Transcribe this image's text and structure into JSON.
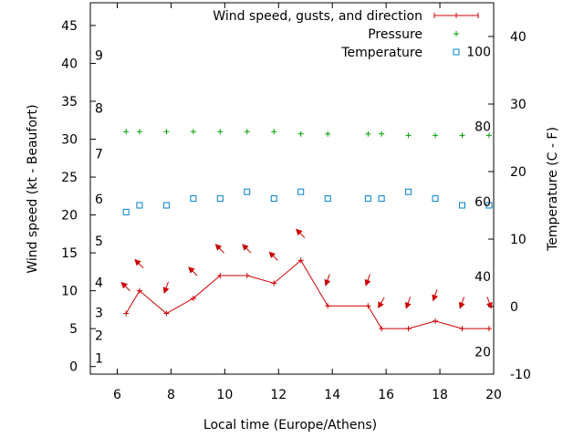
{
  "chart_data": {
    "type": "line",
    "xlabel": "Local time (Europe/Athens)",
    "ylabel": "Wind speed (kt - Beaufort)",
    "y2label": "Temperature (C - F)",
    "xlim": [
      5,
      20
    ],
    "ylim": [
      -1,
      48
    ],
    "y2lim": [
      -10,
      45
    ],
    "x_ticks": [
      6,
      8,
      10,
      12,
      14,
      16,
      18,
      20
    ],
    "y_ticks": [
      0,
      5,
      10,
      15,
      20,
      25,
      30,
      35,
      40,
      45
    ],
    "y2_ticks": [
      -10,
      0,
      10,
      20,
      30,
      40
    ],
    "beaufort_labels": [
      {
        "label": "1",
        "y": 1.1
      },
      {
        "label": "2",
        "y": 4.1
      },
      {
        "label": "3",
        "y": 7.1
      },
      {
        "label": "4",
        "y": 11.1
      },
      {
        "label": "5",
        "y": 16.6
      },
      {
        "label": "6",
        "y": 22.1
      },
      {
        "label": "7",
        "y": 28.1
      },
      {
        "label": "8",
        "y": 34.1
      },
      {
        "label": "9",
        "y": 41.1
      }
    ],
    "fahrenheit_labels": [
      {
        "label": "20",
        "f": 20
      },
      {
        "label": "40",
        "f": 40
      },
      {
        "label": "60",
        "f": 60
      },
      {
        "label": "80",
        "f": 80
      },
      {
        "label": "100",
        "f": 100
      }
    ],
    "legend_position": "top-right",
    "series": [
      {
        "name": "Wind speed, gusts, and direction",
        "color": "#cc0000",
        "marker": "plus-line",
        "x": [
          6.33,
          6.83,
          7.83,
          8.83,
          9.83,
          10.83,
          11.83,
          12.83,
          13.83,
          15.33,
          15.83,
          16.83,
          17.83,
          18.83,
          19.83
        ],
        "y": [
          7,
          10,
          7,
          9,
          12,
          12,
          11,
          14,
          8,
          8,
          5,
          5,
          6,
          5,
          5
        ]
      },
      {
        "name": "Pressure",
        "color": "#00a000",
        "marker": "plus",
        "x": [
          6.33,
          6.83,
          7.83,
          8.83,
          9.83,
          10.83,
          11.83,
          12.83,
          13.83,
          15.33,
          15.83,
          16.83,
          17.83,
          18.83,
          19.83
        ],
        "y": [
          31,
          31,
          31,
          31,
          31,
          31,
          31,
          30.7,
          30.7,
          30.7,
          30.7,
          30.5,
          30.5,
          30.5,
          30.5
        ]
      },
      {
        "name": "Temperature",
        "color": "#0080cc",
        "marker": "square",
        "x": [
          6.33,
          6.83,
          7.83,
          8.83,
          9.83,
          10.83,
          11.83,
          12.83,
          13.83,
          15.33,
          15.83,
          16.83,
          17.83,
          18.83,
          19.83
        ],
        "y": [
          14,
          15,
          15,
          16,
          16,
          17,
          16,
          17,
          16,
          16,
          16,
          17,
          16,
          15,
          15
        ]
      }
    ],
    "wind_direction_arrows": {
      "color": "#cc0000",
      "x": [
        6.33,
        6.83,
        7.83,
        8.83,
        9.83,
        10.83,
        11.83,
        12.83,
        13.83,
        15.33,
        15.83,
        16.83,
        17.83,
        18.83,
        19.83
      ],
      "y": [
        10.5,
        13.5,
        10.5,
        12.5,
        15.5,
        15.5,
        14.5,
        17.5,
        11.5,
        11.5,
        8.5,
        8.5,
        9.5,
        8.5,
        8.5
      ],
      "direction_deg": [
        315,
        315,
        200,
        315,
        315,
        315,
        315,
        315,
        200,
        200,
        210,
        200,
        200,
        200,
        160
      ]
    }
  }
}
